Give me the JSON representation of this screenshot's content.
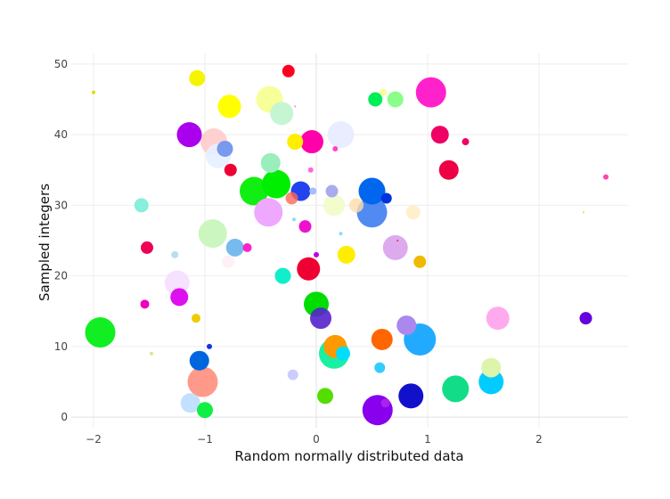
{
  "chart_data": {
    "type": "scatter",
    "title": "",
    "xlabel": "Random normally distributed data",
    "ylabel": "Sampled integers",
    "xlim": [
      -2.2,
      2.8
    ],
    "ylim": [
      -1.5,
      51.5
    ],
    "x_ticks": [
      {
        "value": -2,
        "label": "−2"
      },
      {
        "value": -1,
        "label": "−1"
      },
      {
        "value": 0,
        "label": "0"
      },
      {
        "value": 1,
        "label": "1"
      },
      {
        "value": 2,
        "label": "2"
      }
    ],
    "y_ticks": [
      {
        "value": 0,
        "label": "0"
      },
      {
        "value": 10,
        "label": "10"
      },
      {
        "value": 20,
        "label": "20"
      },
      {
        "value": 30,
        "label": "30"
      },
      {
        "value": 40,
        "label": "40"
      },
      {
        "value": 50,
        "label": "50"
      }
    ],
    "grid": true,
    "legend": false,
    "points": [
      {
        "x": -2.0,
        "y": 46,
        "size": 2,
        "color": "#dddd00",
        "opacity": 1
      },
      {
        "x": -1.07,
        "y": 48,
        "size": 9,
        "color": "#f5f500",
        "opacity": 1
      },
      {
        "x": -0.25,
        "y": 49,
        "size": 7,
        "color": "#ff0022",
        "opacity": 1
      },
      {
        "x": -0.78,
        "y": 44,
        "size": 13,
        "color": "#ffff00",
        "opacity": 1
      },
      {
        "x": -0.42,
        "y": 45,
        "size": 15,
        "color": "#f6ff9a",
        "opacity": 1
      },
      {
        "x": -0.31,
        "y": 43,
        "size": 13,
        "color": "#c6f5d2",
        "opacity": 1
      },
      {
        "x": -0.19,
        "y": 44,
        "size": 1,
        "color": "#ff77dd",
        "opacity": 1
      },
      {
        "x": 0.53,
        "y": 45,
        "size": 8,
        "color": "#00ee55",
        "opacity": 1
      },
      {
        "x": 0.6,
        "y": 46,
        "size": 4,
        "color": "#f6ff9a",
        "opacity": 1
      },
      {
        "x": 0.71,
        "y": 45,
        "size": 9,
        "color": "#88ff88",
        "opacity": 1
      },
      {
        "x": 1.03,
        "y": 46,
        "size": 17,
        "color": "#ff22cc",
        "opacity": 1
      },
      {
        "x": -1.14,
        "y": 40,
        "size": 14,
        "color": "#aa00ee",
        "opacity": 1
      },
      {
        "x": -0.92,
        "y": 39,
        "size": 15,
        "color": "#ffc8c8",
        "opacity": 0.85
      },
      {
        "x": -0.82,
        "y": 38,
        "size": 9,
        "color": "#7799ee",
        "opacity": 1
      },
      {
        "x": -0.88,
        "y": 37,
        "size": 14,
        "color": "#e6f0ff",
        "opacity": 0.9
      },
      {
        "x": -0.19,
        "y": 39,
        "size": 9,
        "color": "#ffee00",
        "opacity": 1
      },
      {
        "x": -0.04,
        "y": 39,
        "size": 13,
        "color": "#ff00aa",
        "opacity": 1
      },
      {
        "x": 0.22,
        "y": 40,
        "size": 15,
        "color": "#e6ebff",
        "opacity": 0.9
      },
      {
        "x": 0.17,
        "y": 38,
        "size": 3,
        "color": "#ff44cc",
        "opacity": 1
      },
      {
        "x": 1.11,
        "y": 40,
        "size": 10,
        "color": "#ee0066",
        "opacity": 1
      },
      {
        "x": 1.34,
        "y": 39,
        "size": 4,
        "color": "#ee0066",
        "opacity": 1
      },
      {
        "x": -0.77,
        "y": 35,
        "size": 7,
        "color": "#ee0033",
        "opacity": 1
      },
      {
        "x": -0.41,
        "y": 36,
        "size": 11,
        "color": "#99eebb",
        "opacity": 1
      },
      {
        "x": -0.05,
        "y": 35,
        "size": 3,
        "color": "#ff66dd",
        "opacity": 1
      },
      {
        "x": -0.56,
        "y": 32,
        "size": 16,
        "color": "#11ee11",
        "opacity": 1
      },
      {
        "x": -0.36,
        "y": 33,
        "size": 16,
        "color": "#00ee00",
        "opacity": 1
      },
      {
        "x": -0.14,
        "y": 32,
        "size": 11,
        "color": "#2244ee",
        "opacity": 1
      },
      {
        "x": -0.03,
        "y": 32,
        "size": 4,
        "color": "#aabbff",
        "opacity": 1
      },
      {
        "x": 0.14,
        "y": 32,
        "size": 7,
        "color": "#aaaaee",
        "opacity": 1
      },
      {
        "x": 0.5,
        "y": 32,
        "size": 15,
        "color": "#0066ee",
        "opacity": 1
      },
      {
        "x": 0.63,
        "y": 31,
        "size": 6,
        "color": "#0033dd",
        "opacity": 1
      },
      {
        "x": -0.22,
        "y": 31,
        "size": 7,
        "color": "#ff6655",
        "opacity": 0.8
      },
      {
        "x": 1.19,
        "y": 35,
        "size": 11,
        "color": "#ee0044",
        "opacity": 1
      },
      {
        "x": 2.6,
        "y": 34,
        "size": 3,
        "color": "#ff44aa",
        "opacity": 1
      },
      {
        "x": -1.57,
        "y": 30,
        "size": 8,
        "color": "#88eedd",
        "opacity": 1
      },
      {
        "x": -0.43,
        "y": 29,
        "size": 16,
        "color": "#eea8ff",
        "opacity": 1
      },
      {
        "x": -0.2,
        "y": 28,
        "size": 2,
        "color": "#88ddff",
        "opacity": 1
      },
      {
        "x": 0.16,
        "y": 30,
        "size": 12,
        "color": "#f2fcc8",
        "opacity": 0.9
      },
      {
        "x": 0.36,
        "y": 30,
        "size": 8,
        "color": "#ffddaa",
        "opacity": 0.8
      },
      {
        "x": 0.5,
        "y": 29,
        "size": 17,
        "color": "#3377ee",
        "opacity": 0.85
      },
      {
        "x": 0.87,
        "y": 29,
        "size": 8,
        "color": "#fff0cc",
        "opacity": 1
      },
      {
        "x": 2.4,
        "y": 29,
        "size": 1,
        "color": "#ffcc44",
        "opacity": 1
      },
      {
        "x": -0.93,
        "y": 26,
        "size": 16,
        "color": "#c6f5b8",
        "opacity": 0.9
      },
      {
        "x": -0.73,
        "y": 24,
        "size": 10,
        "color": "#77bbee",
        "opacity": 1
      },
      {
        "x": -0.62,
        "y": 24,
        "size": 5,
        "color": "#ff22cc",
        "opacity": 1
      },
      {
        "x": -0.1,
        "y": 27,
        "size": 7,
        "color": "#ee11cc",
        "opacity": 1
      },
      {
        "x": 0.22,
        "y": 26,
        "size": 2,
        "color": "#88ddff",
        "opacity": 1
      },
      {
        "x": 0.71,
        "y": 24,
        "size": 14,
        "color": "#ddaaee",
        "opacity": 1
      },
      {
        "x": 0.73,
        "y": 25,
        "size": 1,
        "color": "#ee2266",
        "opacity": 1
      },
      {
        "x": -1.52,
        "y": 24,
        "size": 7,
        "color": "#ee0055",
        "opacity": 1
      },
      {
        "x": -1.27,
        "y": 23,
        "size": 4,
        "color": "#bbddee",
        "opacity": 1
      },
      {
        "x": -0.79,
        "y": 22,
        "size": 7,
        "color": "#fff0f5",
        "opacity": 1
      },
      {
        "x": -0.3,
        "y": 20,
        "size": 9,
        "color": "#11eecc",
        "opacity": 1
      },
      {
        "x": -0.07,
        "y": 21,
        "size": 13,
        "color": "#ee0033",
        "opacity": 1
      },
      {
        "x": 0.0,
        "y": 23,
        "size": 3,
        "color": "#bb00ee",
        "opacity": 1
      },
      {
        "x": 0.27,
        "y": 23,
        "size": 10,
        "color": "#ffee00",
        "opacity": 1
      },
      {
        "x": 0.93,
        "y": 22,
        "size": 7,
        "color": "#eebb00",
        "opacity": 1
      },
      {
        "x": -1.25,
        "y": 19,
        "size": 14,
        "color": "#f5ddff",
        "opacity": 0.85
      },
      {
        "x": -1.23,
        "y": 17,
        "size": 10,
        "color": "#dd11ee",
        "opacity": 1
      },
      {
        "x": -1.54,
        "y": 16,
        "size": 5,
        "color": "#ee00bb",
        "opacity": 1
      },
      {
        "x": -1.08,
        "y": 14,
        "size": 5,
        "color": "#eecc00",
        "opacity": 1
      },
      {
        "x": -0.0,
        "y": 16,
        "size": 14,
        "color": "#00dd00",
        "opacity": 1
      },
      {
        "x": 0.04,
        "y": 14,
        "size": 12,
        "color": "#5522cc",
        "opacity": 0.9
      },
      {
        "x": 0.81,
        "y": 13,
        "size": 11,
        "color": "#aa88ee",
        "opacity": 1
      },
      {
        "x": 1.63,
        "y": 14,
        "size": 13,
        "color": "#ffaaee",
        "opacity": 1
      },
      {
        "x": 2.42,
        "y": 14,
        "size": 7,
        "color": "#6600dd",
        "opacity": 1
      },
      {
        "x": -1.94,
        "y": 12,
        "size": 17,
        "color": "#11ee22",
        "opacity": 1
      },
      {
        "x": -1.48,
        "y": 9,
        "size": 2,
        "color": "#ccee88",
        "opacity": 1
      },
      {
        "x": -0.96,
        "y": 10,
        "size": 3,
        "color": "#1133ee",
        "opacity": 1
      },
      {
        "x": -1.05,
        "y": 8,
        "size": 11,
        "color": "#0066dd",
        "opacity": 1
      },
      {
        "x": -1.02,
        "y": 5,
        "size": 17,
        "color": "#ff8877",
        "opacity": 0.85
      },
      {
        "x": -1.13,
        "y": 2,
        "size": 11,
        "color": "#bbddff",
        "opacity": 0.9
      },
      {
        "x": -1.0,
        "y": 1,
        "size": 9,
        "color": "#11ee44",
        "opacity": 1
      },
      {
        "x": 0.17,
        "y": 10,
        "size": 13,
        "color": "#ff9900",
        "opacity": 1
      },
      {
        "x": 0.16,
        "y": 9,
        "size": 17,
        "color": "#00ee99",
        "opacity": 0.9
      },
      {
        "x": 0.24,
        "y": 9,
        "size": 8,
        "color": "#00ddff",
        "opacity": 1
      },
      {
        "x": 0.59,
        "y": 11,
        "size": 12,
        "color": "#ff6600",
        "opacity": 1
      },
      {
        "x": 0.57,
        "y": 7,
        "size": 6,
        "color": "#33ccff",
        "opacity": 1
      },
      {
        "x": 0.93,
        "y": 11,
        "size": 18,
        "color": "#22aaff",
        "opacity": 1
      },
      {
        "x": 1.57,
        "y": 7,
        "size": 11,
        "color": "#ddf5aa",
        "opacity": 1
      },
      {
        "x": 1.57,
        "y": 5,
        "size": 14,
        "color": "#00ccff",
        "opacity": 1
      },
      {
        "x": 1.25,
        "y": 4,
        "size": 15,
        "color": "#11dd88",
        "opacity": 1
      },
      {
        "x": 0.85,
        "y": 3,
        "size": 14,
        "color": "#1111cc",
        "opacity": 1
      },
      {
        "x": 0.55,
        "y": 1,
        "size": 17,
        "color": "#8800ee",
        "opacity": 1
      },
      {
        "x": 0.62,
        "y": 2,
        "size": 5,
        "color": "#aa22ee",
        "opacity": 1
      },
      {
        "x": 0.08,
        "y": 3,
        "size": 9,
        "color": "#55dd00",
        "opacity": 1
      },
      {
        "x": -0.21,
        "y": 6,
        "size": 6,
        "color": "#ccccff",
        "opacity": 1
      }
    ]
  }
}
